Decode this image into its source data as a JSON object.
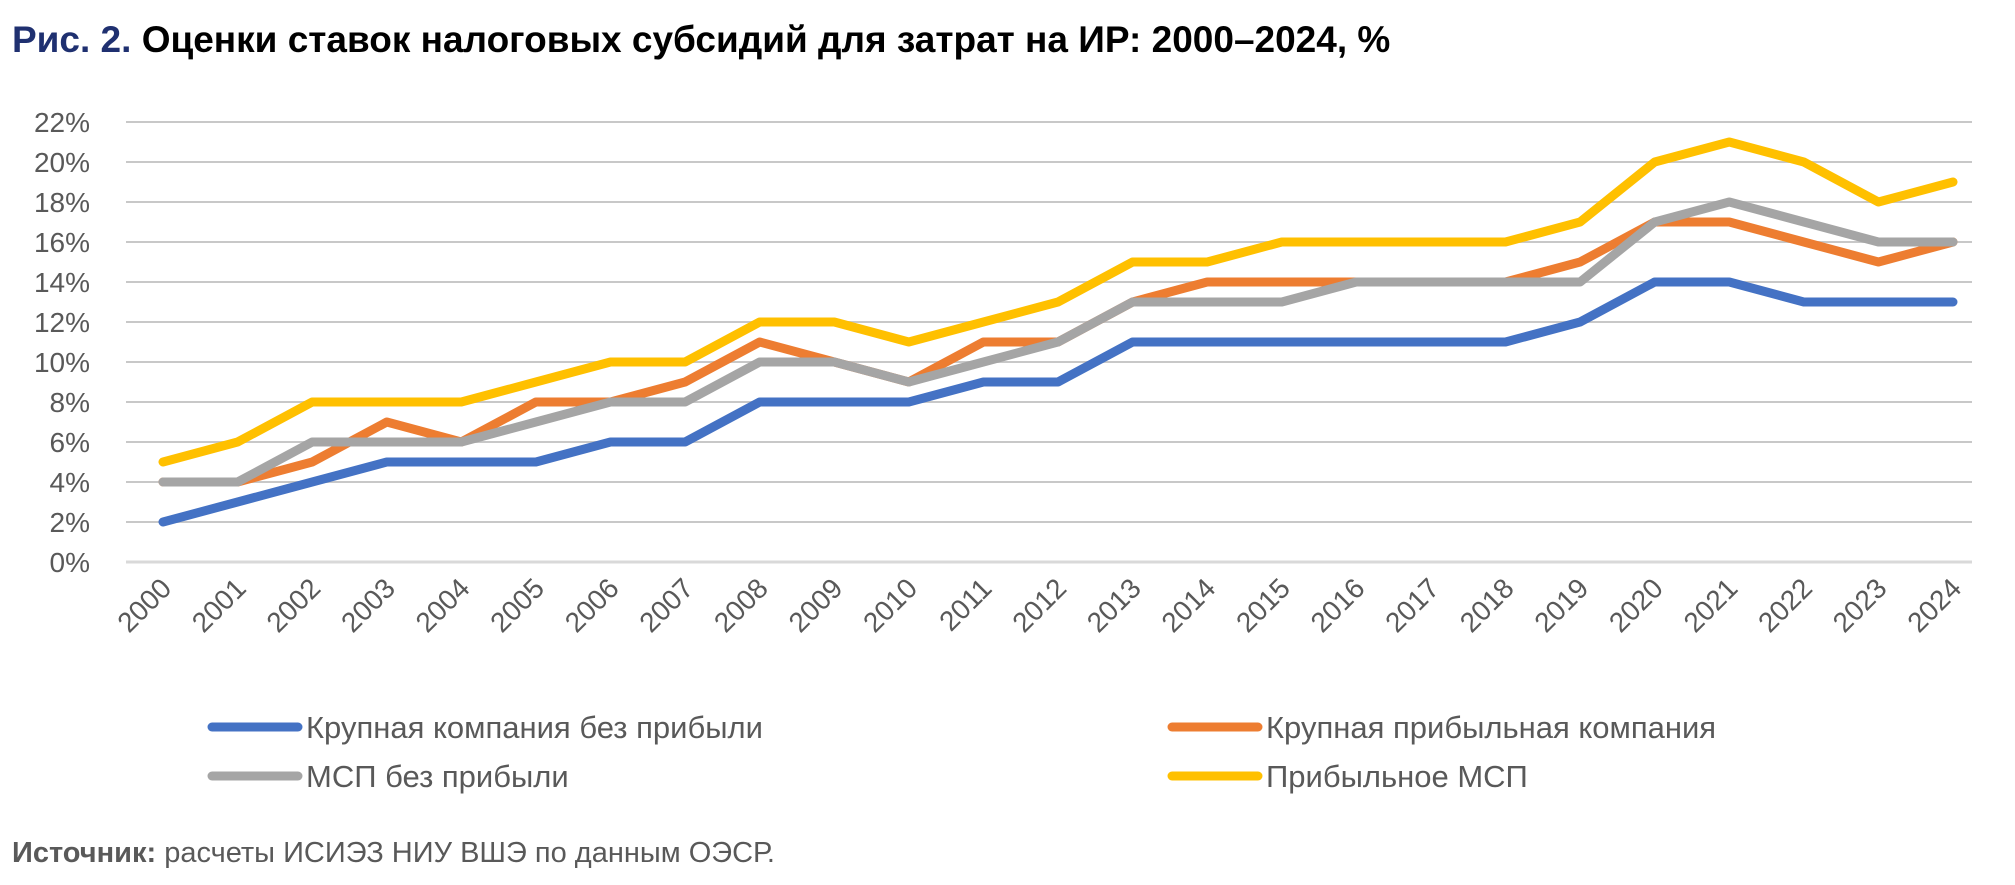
{
  "chart_data": {
    "type": "line",
    "title_prefix": "Рис. 2.",
    "title": "Оценки ставок налоговых субсидий для затрат на ИР: 2000–2024, %",
    "xlabel": "",
    "ylabel": "",
    "x": [
      "2000",
      "2001",
      "2002",
      "2003",
      "2004",
      "2005",
      "2006",
      "2007",
      "2008",
      "2009",
      "2010",
      "2011",
      "2012",
      "2013",
      "2014",
      "2015",
      "2016",
      "2017",
      "2018",
      "2019",
      "2020",
      "2021",
      "2022",
      "2023",
      "2024"
    ],
    "ylim": [
      0,
      22
    ],
    "yticks": [
      "0%",
      "2%",
      "4%",
      "6%",
      "8%",
      "10%",
      "12%",
      "14%",
      "16%",
      "18%",
      "20%",
      "22%"
    ],
    "grid": true,
    "legend_position": "bottom",
    "series": [
      {
        "name": "Крупная компания без прибыли",
        "color": "#4472c4",
        "values": [
          2,
          3,
          4,
          5,
          5,
          5,
          6,
          6,
          8,
          8,
          8,
          9,
          9,
          11,
          11,
          11,
          11,
          11,
          11,
          12,
          14,
          14,
          13,
          13,
          13
        ]
      },
      {
        "name": "Крупная прибыльная компания",
        "color": "#ed7d31",
        "values": [
          4,
          4,
          5,
          7,
          6,
          8,
          8,
          9,
          11,
          10,
          9,
          11,
          11,
          13,
          14,
          14,
          14,
          14,
          14,
          15,
          17,
          17,
          16,
          15,
          16
        ]
      },
      {
        "name": "МСП без прибыли",
        "color": "#a5a5a5",
        "values": [
          4,
          4,
          6,
          6,
          6,
          7,
          8,
          8,
          10,
          10,
          9,
          10,
          11,
          13,
          13,
          13,
          14,
          14,
          14,
          14,
          17,
          18,
          17,
          16,
          16
        ]
      },
      {
        "name": "Прибыльное МСП",
        "color": "#ffc000",
        "values": [
          5,
          6,
          8,
          8,
          8,
          9,
          10,
          10,
          12,
          12,
          11,
          12,
          13,
          15,
          15,
          16,
          16,
          16,
          16,
          17,
          20,
          21,
          20,
          18,
          19
        ]
      }
    ]
  },
  "source": {
    "label": "Источник:",
    "text": " расчеты ИСИЭЗ НИУ ВШЭ по данным ОЭСР."
  }
}
